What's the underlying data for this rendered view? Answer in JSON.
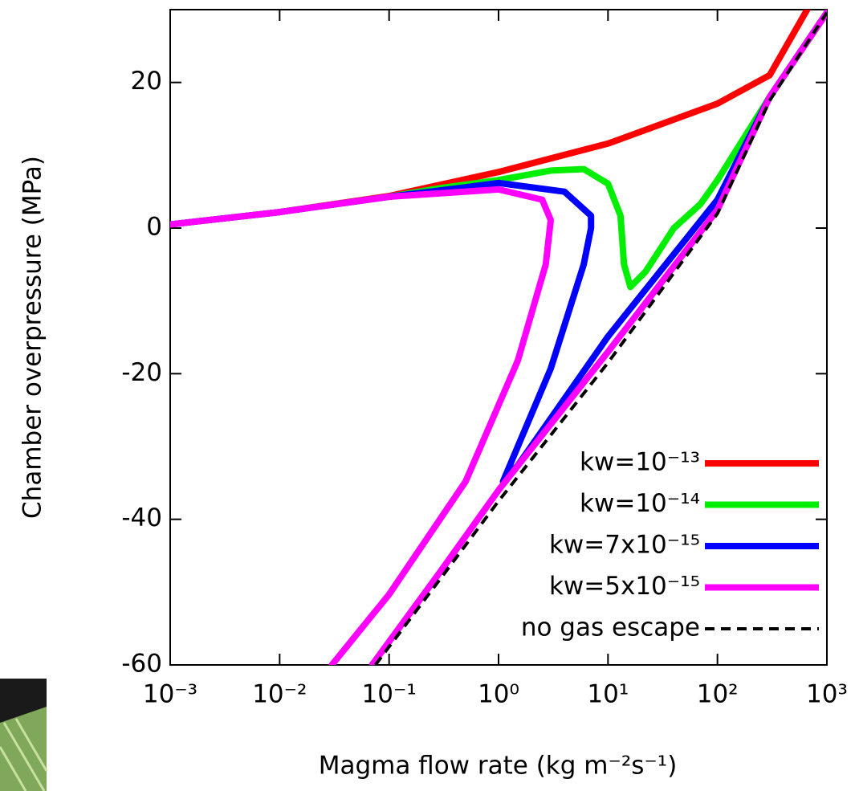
{
  "chart_data": {
    "type": "line",
    "xlabel": "Magma flow rate (kg m⁻²s⁻¹)",
    "ylabel": "Chamber overpressure (MPa)",
    "xscale": "log",
    "xlim": [
      0.001,
      1000
    ],
    "ylim": [
      -60,
      30
    ],
    "xticks": [
      {
        "value": 0.001,
        "label": "10⁻³"
      },
      {
        "value": 0.01,
        "label": "10⁻²"
      },
      {
        "value": 0.1,
        "label": "10⁻¹"
      },
      {
        "value": 1,
        "label": "10⁰"
      },
      {
        "value": 10,
        "label": "10¹"
      },
      {
        "value": 100,
        "label": "10²"
      },
      {
        "value": 1000,
        "label": "10³"
      }
    ],
    "yticks": [
      -60,
      -40,
      -20,
      0,
      20
    ],
    "legend": "lower right",
    "series": [
      {
        "name": "kw=10⁻¹³",
        "color": "#ff0000",
        "dash": false,
        "x": [
          0.001,
          0.01,
          0.1,
          1,
          10,
          100,
          300,
          660
        ],
        "values": [
          0.5,
          2.2,
          4.4,
          7.7,
          11.6,
          17.1,
          21,
          30
        ]
      },
      {
        "name": "kw=10⁻¹⁴",
        "color": "#00ee00",
        "dash": false,
        "x": [
          0.001,
          0.01,
          0.1,
          0.3,
          1,
          3,
          6,
          10,
          13,
          14,
          16,
          22,
          40,
          70,
          100,
          300,
          1000
        ],
        "values": [
          0.5,
          2.2,
          4.3,
          5.5,
          6.6,
          7.9,
          8.1,
          6.1,
          1.7,
          -5,
          -8.1,
          -6,
          0,
          3.3,
          6.6,
          18,
          29.6
        ]
      },
      {
        "name": "kw=7x10⁻¹⁵",
        "color": "#0000ff",
        "dash": false,
        "x": [
          0.001,
          0.01,
          0.1,
          0.5,
          1,
          4,
          7,
          7,
          6,
          3,
          1.1,
          1.5,
          10,
          100,
          300,
          1000
        ],
        "values": [
          0.5,
          2.2,
          4.3,
          5.6,
          6.2,
          5.0,
          1.7,
          0,
          -5,
          -19.3,
          -34.8,
          -32.6,
          -14.9,
          3.9,
          18,
          29.6
        ]
      },
      {
        "name": "kw=5x10⁻¹⁵",
        "color": "#ff00ff",
        "dash": false,
        "x": [
          0.001,
          0.01,
          0.1,
          1,
          2.5,
          3,
          2.7,
          1.5,
          0.5,
          0.1,
          0.03,
          null,
          0.07,
          0.3,
          1,
          10,
          100,
          300,
          1000
        ],
        "values": [
          0.5,
          2.2,
          4.3,
          5.3,
          3.9,
          1.1,
          -5,
          -18.2,
          -34.8,
          -50.3,
          -60,
          null,
          -60,
          -47,
          -36,
          -17,
          2.5,
          18,
          29.6
        ]
      },
      {
        "name": "no gas escape",
        "color": "#000000",
        "dash": true,
        "x": [
          0.075,
          0.3,
          1,
          10,
          100,
          300,
          1000
        ],
        "values": [
          -60,
          -48,
          -37.5,
          -18.5,
          2,
          17.5,
          29.6
        ]
      }
    ]
  }
}
